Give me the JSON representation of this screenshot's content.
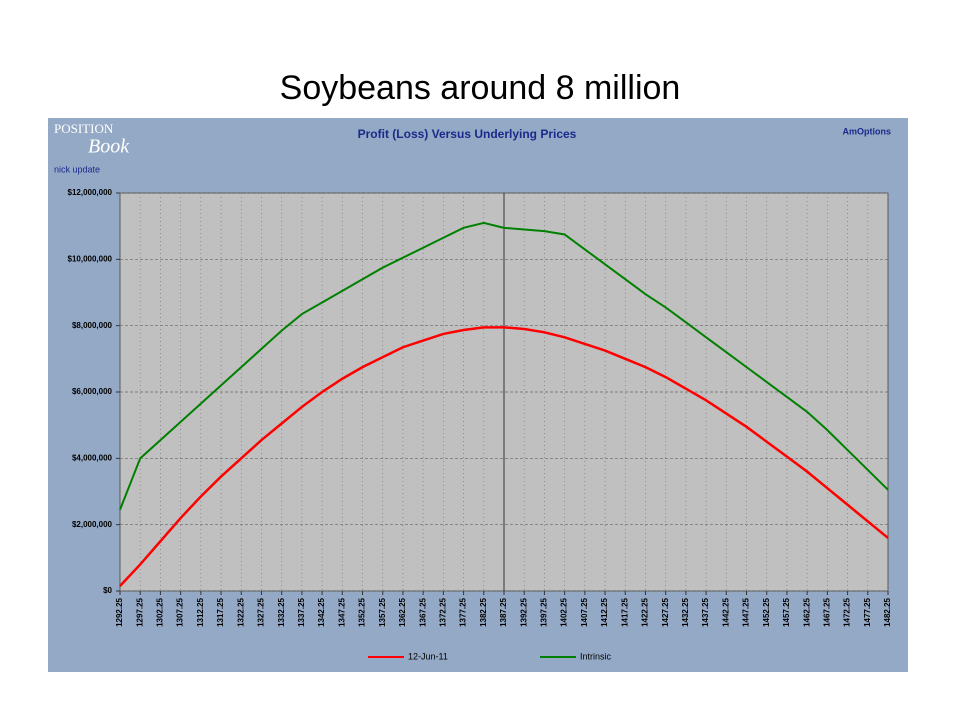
{
  "slide": {
    "title": "Soybeans around 8 million"
  },
  "panel": {
    "logo_top": "POSITION",
    "logo_bottom": "Book",
    "note": "nick update",
    "brand": "AmOptions"
  },
  "chart_data": {
    "type": "line",
    "title": "Profit (Loss) Versus Underlying Prices",
    "x": [
      1292.25,
      1297.25,
      1302.25,
      1307.25,
      1312.25,
      1317.25,
      1322.25,
      1327.25,
      1332.25,
      1337.25,
      1342.25,
      1347.25,
      1352.25,
      1357.25,
      1362.25,
      1367.25,
      1372.25,
      1377.25,
      1382.25,
      1387.25,
      1392.25,
      1397.25,
      1402.25,
      1407.25,
      1412.25,
      1417.25,
      1422.25,
      1427.25,
      1432.25,
      1437.25,
      1442.25,
      1447.25,
      1452.25,
      1457.25,
      1462.25,
      1467.25,
      1472.25,
      1477.25,
      1482.25
    ],
    "xlim": [
      1292.25,
      1482.25
    ],
    "xticks": [
      1292.25,
      1297.25,
      1302.25,
      1307.25,
      1312.25,
      1317.25,
      1322.25,
      1327.25,
      1332.25,
      1337.25,
      1342.25,
      1347.25,
      1352.25,
      1357.25,
      1362.25,
      1367.25,
      1372.25,
      1377.25,
      1382.25,
      1387.25,
      1392.25,
      1397.25,
      1402.25,
      1407.25,
      1412.25,
      1417.25,
      1422.25,
      1427.25,
      1432.25,
      1437.25,
      1442.25,
      1447.25,
      1452.25,
      1457.25,
      1462.25,
      1467.25,
      1472.25,
      1477.25,
      1482.25
    ],
    "ylim": [
      0,
      12000000
    ],
    "yticks": [
      {
        "value": 0,
        "label": "$0"
      },
      {
        "value": 2000000,
        "label": "$2,000,000"
      },
      {
        "value": 4000000,
        "label": "$4,000,000"
      },
      {
        "value": 6000000,
        "label": "$6,000,000"
      },
      {
        "value": 8000000,
        "label": "$8,000,000"
      },
      {
        "value": 10000000,
        "label": "$10,000,000"
      },
      {
        "value": 12000000,
        "label": "$12,000,000"
      }
    ],
    "grid": true,
    "vline": 1387.25,
    "legend": "bottom",
    "series": [
      {
        "name": "12-Jun-11",
        "color": "#ff0000",
        "values": [
          150000,
          800000,
          1500000,
          2200000,
          2850000,
          3450000,
          4000000,
          4550000,
          5050000,
          5550000,
          6000000,
          6400000,
          6750000,
          7050000,
          7350000,
          7550000,
          7750000,
          7870000,
          7950000,
          7950000,
          7900000,
          7800000,
          7650000,
          7450000,
          7250000,
          7000000,
          6750000,
          6450000,
          6100000,
          5750000,
          5350000,
          4950000,
          4500000,
          4050000,
          3600000,
          3100000,
          2600000,
          2100000,
          1600000
        ]
      },
      {
        "name": "Intrinsic",
        "color": "#008000",
        "values": [
          2450000,
          4000000,
          4550000,
          5100000,
          5650000,
          6200000,
          6750000,
          7300000,
          7850000,
          8350000,
          8700000,
          9050000,
          9400000,
          9750000,
          10050000,
          10350000,
          10650000,
          10950000,
          11100000,
          10950000,
          10900000,
          10850000,
          10750000,
          10300000,
          9850000,
          9400000,
          8950000,
          8550000,
          8100000,
          7650000,
          7200000,
          6750000,
          6300000,
          5850000,
          5400000,
          4850000,
          4250000,
          3650000,
          3050000
        ]
      }
    ]
  }
}
